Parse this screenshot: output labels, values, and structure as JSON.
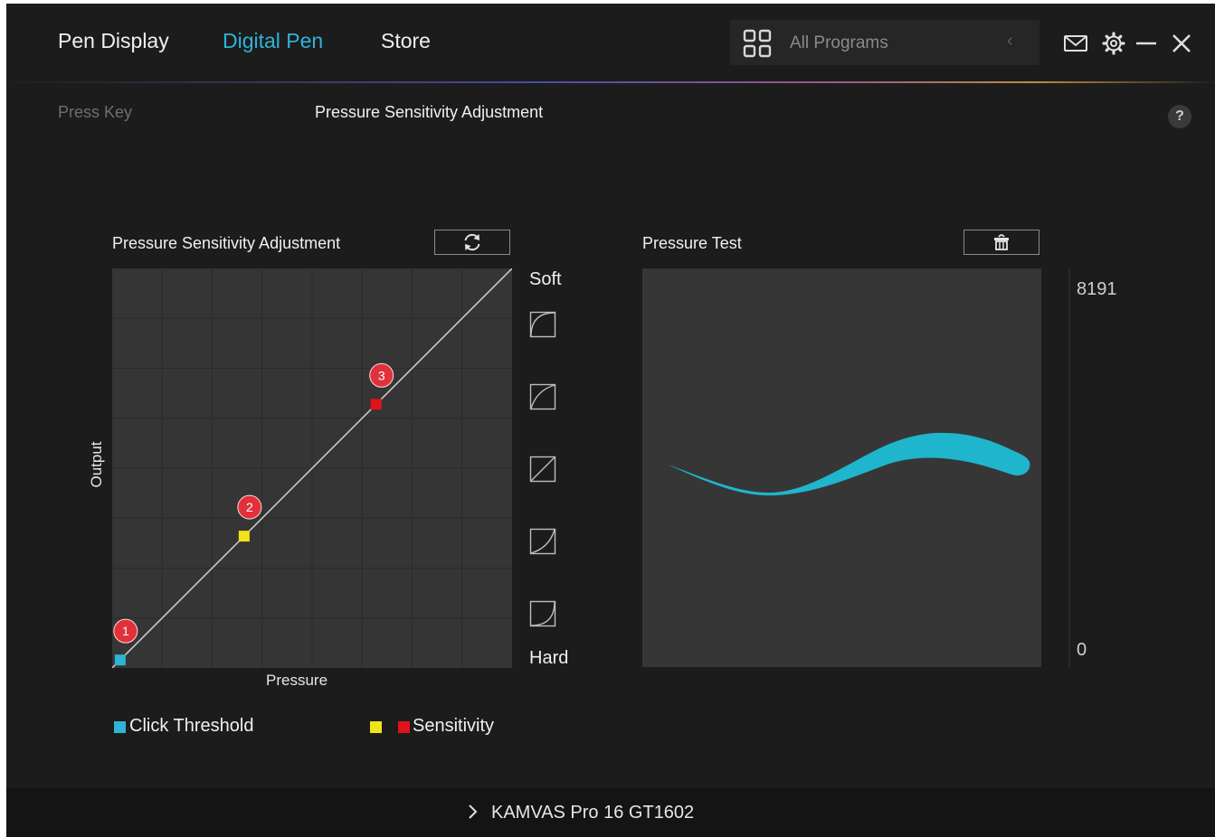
{
  "nav": {
    "tabs": [
      {
        "label": "Pen Display",
        "active": false
      },
      {
        "label": "Digital Pen",
        "active": true
      },
      {
        "label": "Store",
        "active": false
      }
    ],
    "program_select": {
      "label": "All Programs",
      "icon": "grid-icon"
    }
  },
  "window_controls": [
    "mail-icon",
    "gear-icon",
    "minimize-icon",
    "close-icon"
  ],
  "subtabs": [
    {
      "label": "Press Key",
      "active": false
    },
    {
      "label": "Pressure Sensitivity Adjustment",
      "active": true
    }
  ],
  "help": {
    "label": "?"
  },
  "curve_panel": {
    "title": "Pressure Sensitivity Adjustment",
    "reset_icon": "refresh-icon",
    "x_axis_label": "Pressure",
    "y_axis_label": "Output",
    "soft_label": "Soft",
    "hard_label": "Hard",
    "presets": [
      "preset-softest-icon",
      "preset-soft-icon",
      "preset-linear-icon",
      "preset-hard-icon",
      "preset-hardest-icon"
    ],
    "points": [
      {
        "badge": "1",
        "x": 0.02,
        "y": 0.02,
        "color": "#2fb3d6"
      },
      {
        "badge": "2",
        "x": 0.33,
        "y": 0.33,
        "color": "#f2e31a"
      },
      {
        "badge": "3",
        "x": 0.66,
        "y": 0.66,
        "color": "#e0121a"
      }
    ]
  },
  "legend": {
    "click_threshold": {
      "label": "Click Threshold",
      "color": "#2fb3d6"
    },
    "sensitivity": {
      "label": "Sensitivity",
      "colors": [
        "#f2e31a",
        "#e0121a"
      ]
    }
  },
  "test_panel": {
    "title": "Pressure Test",
    "clear_icon": "eraser-icon",
    "max_value": "8191",
    "min_value": "0",
    "stroke_color": "#1fb5cc"
  },
  "device": {
    "name": "KAMVAS Pro 16 GT1602",
    "chevron_icon": "chevron-right-icon"
  },
  "colors": {
    "background": "#1c1c1c",
    "accent": "#2fb3d6"
  }
}
